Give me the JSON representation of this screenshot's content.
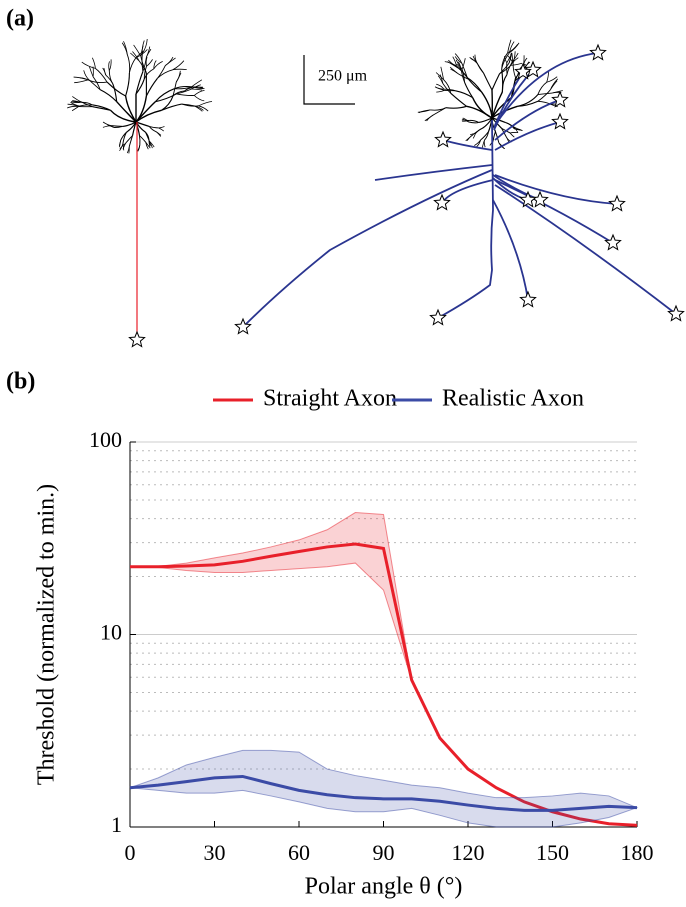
{
  "panel_labels": [
    "(a)",
    "(b)"
  ],
  "scale_bar_label": "250 μm",
  "chart_data": {
    "type": "line",
    "xlabel": "Polar angle θ (°)",
    "ylabel": "Threshold (normalized to min.)",
    "x": [
      0,
      10,
      20,
      30,
      40,
      50,
      60,
      70,
      80,
      90,
      100,
      110,
      120,
      130,
      140,
      150,
      160,
      170,
      180
    ],
    "xlim": [
      0,
      180
    ],
    "xticks": [
      0,
      30,
      60,
      90,
      120,
      150,
      180
    ],
    "ylim": [
      1,
      100
    ],
    "yticks": [
      1,
      10,
      100
    ],
    "minor_yticks": [
      2,
      3,
      4,
      5,
      6,
      7,
      8,
      9,
      20,
      30,
      40,
      50,
      60,
      70,
      80,
      90
    ],
    "log_y": true,
    "grid": true,
    "legend": "top",
    "series": [
      {
        "name": "Straight Axon",
        "color": "#e8202a",
        "values": [
          22.5,
          22.5,
          22.7,
          23,
          24,
          25.5,
          27,
          28.5,
          29.5,
          28,
          5.8,
          2.9,
          2,
          1.6,
          1.35,
          1.2,
          1.1,
          1.04,
          1.02
        ],
        "lower": [
          22.5,
          22.3,
          21.5,
          21,
          21,
          21.5,
          22,
          22.5,
          23.5,
          17,
          5.8,
          2.9,
          2,
          1.6,
          1.35,
          1.2,
          1.1,
          1.04,
          1.02
        ],
        "upper": [
          22.5,
          22.6,
          23.5,
          25,
          26.5,
          28.5,
          31,
          35,
          43,
          42,
          5.8,
          2.9,
          2,
          1.6,
          1.35,
          1.2,
          1.1,
          1.04,
          1.02
        ]
      },
      {
        "name": "Realistic Axon",
        "color": "#3b4ba6",
        "values": [
          1.6,
          1.65,
          1.72,
          1.8,
          1.83,
          1.68,
          1.55,
          1.47,
          1.42,
          1.4,
          1.4,
          1.36,
          1.3,
          1.25,
          1.22,
          1.22,
          1.25,
          1.28,
          1.26
        ],
        "lower": [
          1.6,
          1.55,
          1.5,
          1.5,
          1.55,
          1.45,
          1.35,
          1.25,
          1.2,
          1.2,
          1.25,
          1.15,
          1.05,
          1.0,
          1.0,
          1.0,
          1.05,
          1.12,
          1.26
        ],
        "upper": [
          1.6,
          1.8,
          2.1,
          2.3,
          2.5,
          2.5,
          2.45,
          2.0,
          1.85,
          1.75,
          1.65,
          1.6,
          1.5,
          1.42,
          1.42,
          1.45,
          1.5,
          1.45,
          1.26
        ]
      }
    ]
  }
}
